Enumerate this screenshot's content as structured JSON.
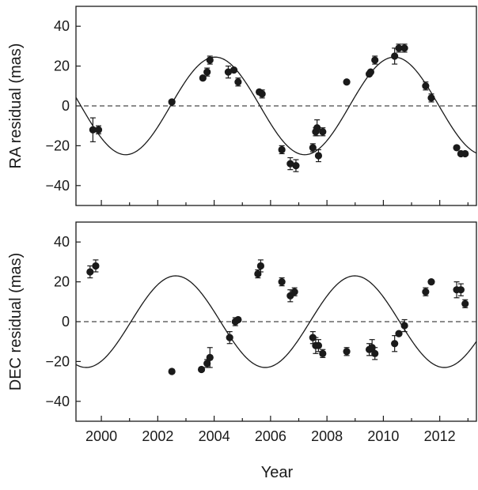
{
  "chart_data": [
    {
      "type": "scatter",
      "panel": "top",
      "title": "",
      "xlabel": "",
      "ylabel": "RA residual (mas)",
      "xlim": [
        1999.1,
        2013.3
      ],
      "ylim": [
        -50,
        50
      ],
      "xticks": [
        2000,
        2002,
        2004,
        2006,
        2008,
        2010,
        2012
      ],
      "yticks": [
        -40,
        -20,
        0,
        20,
        40
      ],
      "ytick_labels": [
        "−40",
        "−20",
        "0",
        "20",
        "40"
      ],
      "grid": false,
      "legend": "none",
      "reference_line": {
        "y": 0,
        "style": "dashed"
      },
      "series": [
        {
          "kind": "points",
          "x": [
            1999.7,
            1999.9,
            2002.5,
            2003.6,
            2003.75,
            2003.85,
            2004.5,
            2004.7,
            2004.85,
            2005.6,
            2005.7,
            2006.4,
            2006.7,
            2006.9,
            2007.5,
            2007.65,
            2007.7,
            2007.85,
            2007.6,
            2008.7,
            2009.5,
            2009.55,
            2009.7,
            2010.4,
            2010.55,
            2010.75,
            2011.5,
            2011.7,
            2012.6,
            2012.75,
            2012.9
          ],
          "y": [
            -12,
            -12,
            2,
            14,
            17,
            23,
            17,
            18,
            12,
            7,
            6,
            -22,
            -29,
            -30,
            -21,
            -11,
            -25,
            -13,
            -13,
            12,
            16,
            17,
            23,
            25,
            29,
            29,
            10,
            4,
            -21,
            -24,
            -24
          ],
          "yerr": [
            6,
            2,
            1,
            1,
            2,
            2,
            3,
            1,
            2,
            1,
            2,
            2,
            3,
            3,
            2,
            4,
            3,
            2,
            2,
            0,
            1,
            1,
            2,
            4,
            2,
            2,
            2,
            2,
            1,
            1,
            1
          ]
        },
        {
          "kind": "model",
          "amplitude": 24.5,
          "period_years": 6.35,
          "phase_zero_year": 2002.45
        }
      ]
    },
    {
      "type": "scatter",
      "panel": "bottom",
      "title": "",
      "xlabel": "Year",
      "ylabel": "DEC residual (mas)",
      "xlim": [
        1999.1,
        2013.3
      ],
      "ylim": [
        -50,
        50
      ],
      "xticks": [
        2000,
        2002,
        2004,
        2006,
        2008,
        2010,
        2012
      ],
      "xtick_labels": [
        "2000",
        "2002",
        "2004",
        "2006",
        "2008",
        "2010",
        "2012"
      ],
      "yticks": [
        -40,
        -20,
        0,
        20,
        40
      ],
      "ytick_labels": [
        "−40",
        "−20",
        "0",
        "20",
        "40"
      ],
      "grid": false,
      "legend": "none",
      "reference_line": {
        "y": 0,
        "style": "dashed"
      },
      "series": [
        {
          "kind": "points",
          "x": [
            1999.6,
            1999.8,
            2002.5,
            2003.55,
            2003.75,
            2003.85,
            2004.55,
            2004.75,
            2004.85,
            2005.55,
            2005.65,
            2006.4,
            2006.7,
            2006.85,
            2007.5,
            2007.6,
            2007.7,
            2007.85,
            2008.7,
            2009.5,
            2009.6,
            2009.7,
            2010.4,
            2010.55,
            2010.75,
            2011.5,
            2011.7,
            2012.6,
            2012.75,
            2012.9
          ],
          "y": [
            25,
            28,
            -25,
            -24,
            -21,
            -18,
            -8,
            0,
            1,
            24,
            28,
            20,
            13,
            15,
            -8,
            -12,
            -12,
            -16,
            -15,
            -14,
            -13,
            -16,
            -11,
            -6,
            -2,
            15,
            20,
            16,
            16,
            9
          ],
          "yerr": [
            3,
            3,
            1,
            1,
            2,
            5,
            3,
            2,
            1,
            2,
            3,
            2,
            3,
            2,
            3,
            4,
            3,
            2,
            2,
            3,
            4,
            3,
            4,
            1,
            3,
            2,
            1,
            4,
            3,
            2
          ]
        },
        {
          "kind": "model",
          "amplitude": 23,
          "period_years": 6.35,
          "phase_zero_year": 2001.05
        }
      ]
    }
  ]
}
